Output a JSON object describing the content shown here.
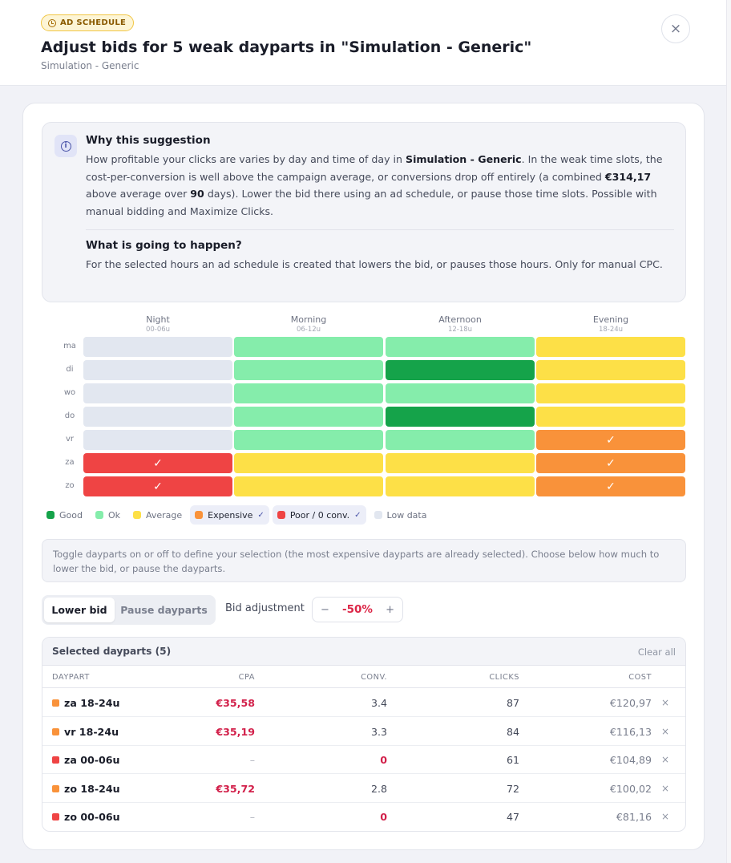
{
  "header": {
    "badge": "AD SCHEDULE",
    "title": "Adjust bids for 5 weak dayparts in \"Simulation - Generic\"",
    "subtitle": "Simulation - Generic",
    "close_label": "×"
  },
  "why": {
    "title": "Why this suggestion",
    "body_pre": "How profitable your clicks are varies by day and time of day in ",
    "body_campaign": "Simulation - Generic",
    "body_mid": ". In the weak time slots, the cost-per-conversion is well above the campaign average, or conversions drop off entirely (a combined ",
    "body_amount": "€314,17",
    "body_mid2": " above average over ",
    "body_days": "90",
    "body_post": " days). Lower the bid there using an ad schedule, or pause those time slots. Possible with manual bidding and Maximize Clicks.",
    "what_title": "What is going to happen?",
    "what_body": "For the selected hours an ad schedule is created that lowers the bid, or pauses those hours. Only for manual CPC."
  },
  "heatmap": {
    "columns": [
      {
        "name": "Night",
        "range": "00-06u"
      },
      {
        "name": "Morning",
        "range": "06-12u"
      },
      {
        "name": "Afternoon",
        "range": "12-18u"
      },
      {
        "name": "Evening",
        "range": "18-24u"
      }
    ],
    "rows": [
      {
        "day": "ma",
        "cells": [
          {
            "level": "low",
            "selected": false
          },
          {
            "level": "ok",
            "selected": false
          },
          {
            "level": "ok",
            "selected": false
          },
          {
            "level": "avg",
            "selected": false
          }
        ]
      },
      {
        "day": "di",
        "cells": [
          {
            "level": "low",
            "selected": false
          },
          {
            "level": "ok",
            "selected": false
          },
          {
            "level": "g",
            "selected": false
          },
          {
            "level": "avg",
            "selected": false
          }
        ]
      },
      {
        "day": "wo",
        "cells": [
          {
            "level": "low",
            "selected": false
          },
          {
            "level": "ok",
            "selected": false
          },
          {
            "level": "ok",
            "selected": false
          },
          {
            "level": "avg",
            "selected": false
          }
        ]
      },
      {
        "day": "do",
        "cells": [
          {
            "level": "low",
            "selected": false
          },
          {
            "level": "ok",
            "selected": false
          },
          {
            "level": "g",
            "selected": false
          },
          {
            "level": "avg",
            "selected": false
          }
        ]
      },
      {
        "day": "vr",
        "cells": [
          {
            "level": "low",
            "selected": false
          },
          {
            "level": "ok",
            "selected": false
          },
          {
            "level": "ok",
            "selected": false
          },
          {
            "level": "exp",
            "selected": true
          }
        ]
      },
      {
        "day": "za",
        "cells": [
          {
            "level": "poor",
            "selected": true
          },
          {
            "level": "avg",
            "selected": false
          },
          {
            "level": "avg",
            "selected": false
          },
          {
            "level": "exp",
            "selected": true
          }
        ]
      },
      {
        "day": "zo",
        "cells": [
          {
            "level": "poor",
            "selected": true
          },
          {
            "level": "avg",
            "selected": false
          },
          {
            "level": "avg",
            "selected": false
          },
          {
            "level": "exp",
            "selected": true
          }
        ]
      }
    ],
    "check_glyph": "✓"
  },
  "legend": [
    {
      "label": "Good",
      "color": "#15a34a",
      "active": false
    },
    {
      "label": "Ok",
      "color": "#85edab",
      "active": false
    },
    {
      "label": "Average",
      "color": "#fde047",
      "active": false
    },
    {
      "label": "Expensive",
      "color": "#f9923a",
      "active": true
    },
    {
      "label": "Poor / 0 conv.",
      "color": "#ef4444",
      "active": true
    },
    {
      "label": "Low data",
      "color": "#e2e7f0",
      "active": false
    }
  ],
  "note": "Toggle dayparts on or off to define your selection (the most expensive dayparts are already selected). Choose below how much to lower the bid, or pause the dayparts.",
  "mode": {
    "lower": "Lower bid",
    "pause": "Pause dayparts"
  },
  "bid": {
    "label": "Bid adjustment",
    "minus": "−",
    "value": "-50%",
    "plus": "+"
  },
  "selected": {
    "title": "Selected dayparts (5)",
    "clear": "Clear all",
    "headers": {
      "daypart": "DAYPART",
      "cpa": "CPA",
      "conv": "CONV.",
      "clicks": "CLICKS",
      "cost": "COST"
    },
    "rows": [
      {
        "name": "za 18-24u",
        "color": "#f9923a",
        "cpa": "€35,58",
        "conv": "3.4",
        "clicks": "87",
        "cost": "€120,97"
      },
      {
        "name": "vr 18-24u",
        "color": "#f9923a",
        "cpa": "€35,19",
        "conv": "3.3",
        "clicks": "84",
        "cost": "€116,13"
      },
      {
        "name": "za 00-06u",
        "color": "#ef4444",
        "cpa": "–",
        "conv": "0",
        "clicks": "61",
        "cost": "€104,89"
      },
      {
        "name": "zo 18-24u",
        "color": "#f9923a",
        "cpa": "€35,72",
        "conv": "2.8",
        "clicks": "72",
        "cost": "€100,02"
      },
      {
        "name": "zo 00-06u",
        "color": "#ef4444",
        "cpa": "–",
        "conv": "0",
        "clicks": "47",
        "cost": "€81,16"
      }
    ],
    "remove_glyph": "×"
  }
}
